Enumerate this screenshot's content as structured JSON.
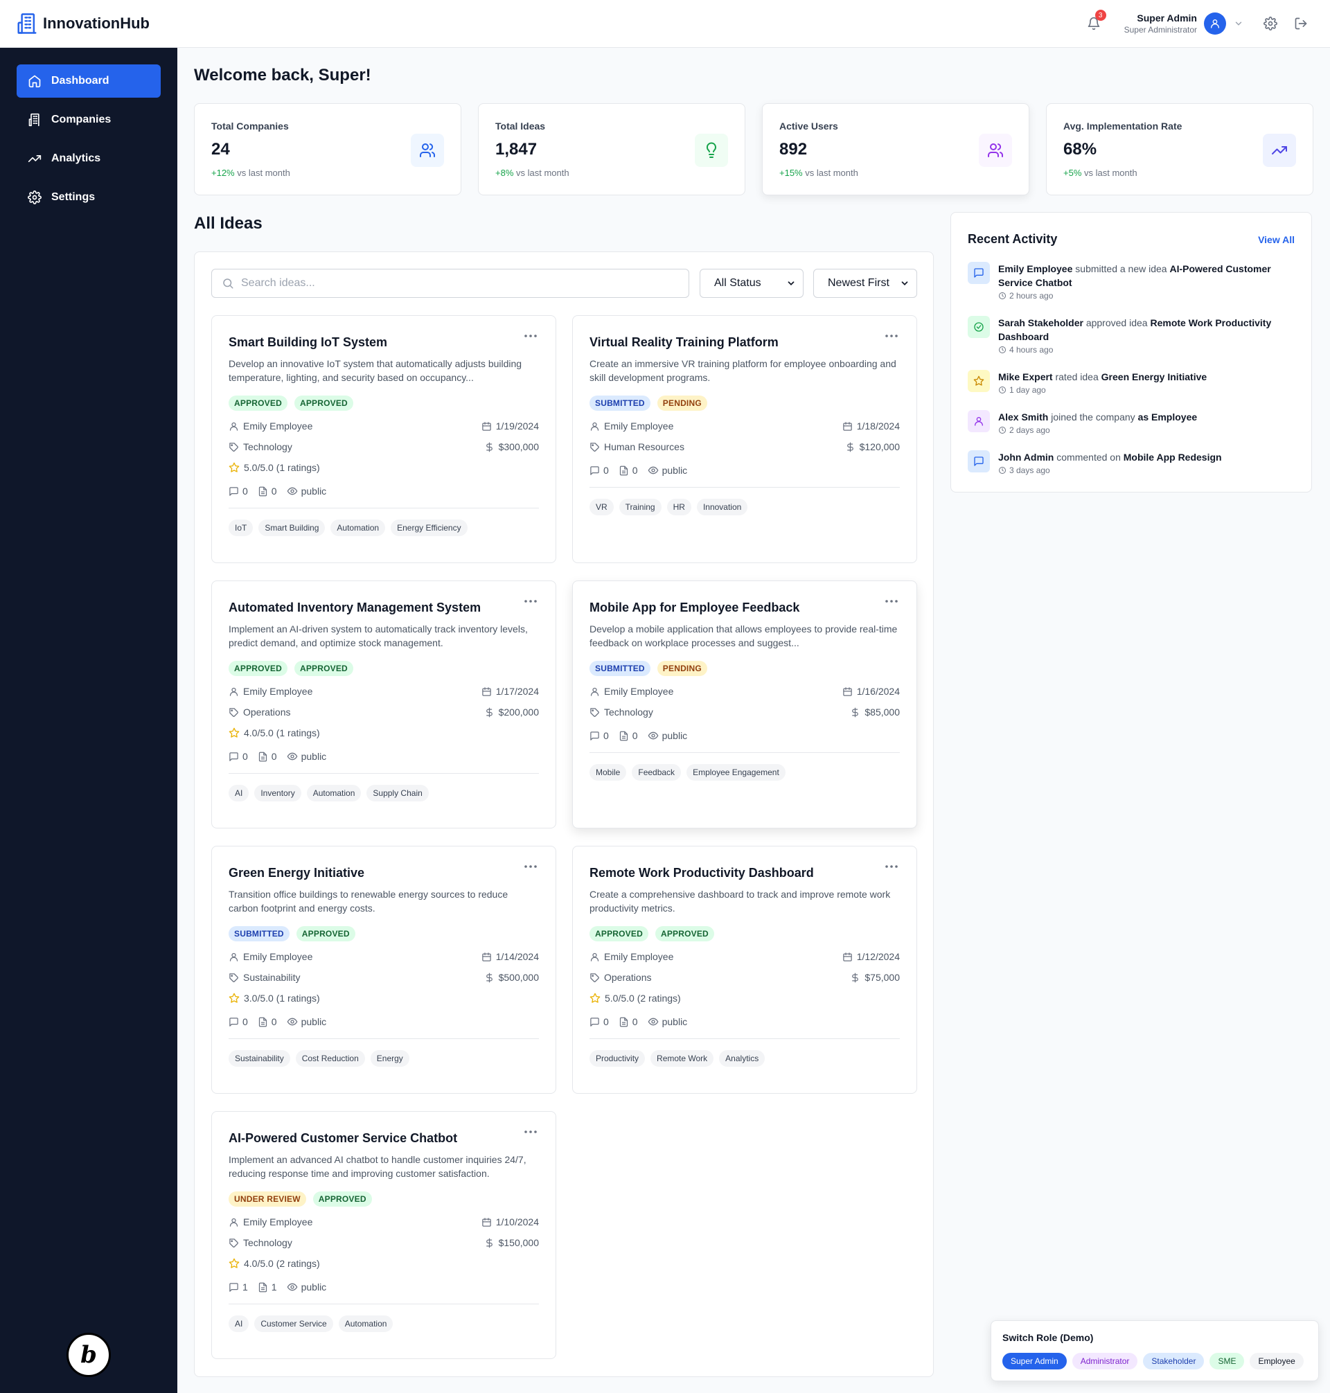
{
  "app": {
    "name": "InnovationHub",
    "notifications": "3"
  },
  "user": {
    "name": "Super Admin",
    "role": "Super Administrator"
  },
  "nav": [
    {
      "label": "Dashboard",
      "icon": "home-icon",
      "active": true
    },
    {
      "label": "Companies",
      "icon": "building-icon"
    },
    {
      "label": "Analytics",
      "icon": "trending-icon"
    },
    {
      "label": "Settings",
      "icon": "gear-icon"
    }
  ],
  "welcome": "Welcome back, Super!",
  "stats": [
    {
      "label": "Total Companies",
      "value": "24",
      "change": "+12%",
      "suffix": "vs last month",
      "icon": "users-icon"
    },
    {
      "label": "Total Ideas",
      "value": "1,847",
      "change": "+8%",
      "suffix": "vs last month",
      "icon": "lightbulb-icon"
    },
    {
      "label": "Active Users",
      "value": "892",
      "change": "+15%",
      "suffix": "vs last month",
      "icon": "users-icon"
    },
    {
      "label": "Avg. Implementation Rate",
      "value": "68%",
      "change": "+5%",
      "suffix": "vs last month",
      "icon": "trending-icon"
    }
  ],
  "ideas_title": "All Ideas",
  "search": {
    "placeholder": "Search ideas..."
  },
  "filters": {
    "status": "All Status",
    "sort": "Newest First"
  },
  "ideas": [
    {
      "title": "Smart Building IoT System",
      "desc": "Develop an innovative IoT system that automatically adjusts building temperature, lighting, and security based on occupancy...",
      "badges": [
        "APPROVED",
        "APPROVED"
      ],
      "author": "Emily Employee",
      "date": "1/19/2024",
      "category": "Technology",
      "budget": "$300,000",
      "rating": "5.0/5.0 (1 ratings)",
      "comments": "0",
      "docs": "0",
      "visibility": "public",
      "tags": [
        "IoT",
        "Smart Building",
        "Automation",
        "Energy Efficiency"
      ]
    },
    {
      "title": "Virtual Reality Training Platform",
      "desc": "Create an immersive VR training platform for employee onboarding and skill development programs.",
      "badges": [
        "SUBMITTED",
        "PENDING"
      ],
      "author": "Emily Employee",
      "date": "1/18/2024",
      "category": "Human Resources",
      "budget": "$120,000",
      "rating": "",
      "comments": "0",
      "docs": "0",
      "visibility": "public",
      "tags": [
        "VR",
        "Training",
        "HR",
        "Innovation"
      ]
    },
    {
      "title": "Automated Inventory Management System",
      "desc": "Implement an AI-driven system to automatically track inventory levels, predict demand, and optimize stock management.",
      "badges": [
        "APPROVED",
        "APPROVED"
      ],
      "author": "Emily Employee",
      "date": "1/17/2024",
      "category": "Operations",
      "budget": "$200,000",
      "rating": "4.0/5.0 (1 ratings)",
      "comments": "0",
      "docs": "0",
      "visibility": "public",
      "tags": [
        "AI",
        "Inventory",
        "Automation",
        "Supply Chain"
      ]
    },
    {
      "title": "Mobile App for Employee Feedback",
      "desc": "Develop a mobile application that allows employees to provide real-time feedback on workplace processes and suggest...",
      "badges": [
        "SUBMITTED",
        "PENDING"
      ],
      "author": "Emily Employee",
      "date": "1/16/2024",
      "category": "Technology",
      "budget": "$85,000",
      "rating": "",
      "comments": "0",
      "docs": "0",
      "visibility": "public",
      "tags": [
        "Mobile",
        "Feedback",
        "Employee Engagement"
      ]
    },
    {
      "title": "Green Energy Initiative",
      "desc": "Transition office buildings to renewable energy sources to reduce carbon footprint and energy costs.",
      "badges": [
        "SUBMITTED",
        "APPROVED"
      ],
      "author": "Emily Employee",
      "date": "1/14/2024",
      "category": "Sustainability",
      "budget": "$500,000",
      "rating": "3.0/5.0 (1 ratings)",
      "comments": "0",
      "docs": "0",
      "visibility": "public",
      "tags": [
        "Sustainability",
        "Cost Reduction",
        "Energy"
      ]
    },
    {
      "title": "Remote Work Productivity Dashboard",
      "desc": "Create a comprehensive dashboard to track and improve remote work productivity metrics.",
      "badges": [
        "APPROVED",
        "APPROVED"
      ],
      "author": "Emily Employee",
      "date": "1/12/2024",
      "category": "Operations",
      "budget": "$75,000",
      "rating": "5.0/5.0 (2 ratings)",
      "comments": "0",
      "docs": "0",
      "visibility": "public",
      "tags": [
        "Productivity",
        "Remote Work",
        "Analytics"
      ]
    },
    {
      "title": "AI-Powered Customer Service Chatbot",
      "desc": "Implement an advanced AI chatbot to handle customer inquiries 24/7, reducing response time and improving customer satisfaction.",
      "badges": [
        "UNDER REVIEW",
        "APPROVED"
      ],
      "author": "Emily Employee",
      "date": "1/10/2024",
      "category": "Technology",
      "budget": "$150,000",
      "rating": "4.0/5.0 (2 ratings)",
      "comments": "1",
      "docs": "1",
      "visibility": "public",
      "tags": [
        "AI",
        "Customer Service",
        "Automation"
      ]
    }
  ],
  "activity": {
    "title": "Recent Activity",
    "view_all": "View All",
    "items": [
      {
        "type": "message",
        "actor": "Emily Employee",
        "action": "submitted a new idea",
        "target": "AI-Powered Customer Service Chatbot",
        "time": "2 hours ago"
      },
      {
        "type": "approve",
        "actor": "Sarah Stakeholder",
        "action": "approved idea",
        "target": "Remote Work Productivity Dashboard",
        "time": "4 hours ago"
      },
      {
        "type": "star",
        "actor": "Mike Expert",
        "action": "rated idea",
        "target": "Green Energy Initiative",
        "time": "1 day ago"
      },
      {
        "type": "user",
        "actor": "Alex Smith",
        "action": "joined the company",
        "target": "as Employee",
        "time": "2 days ago"
      },
      {
        "type": "message",
        "actor": "John Admin",
        "action": "commented on",
        "target": "Mobile App Redesign",
        "time": "3 days ago"
      }
    ]
  },
  "role_switch": {
    "title": "Switch Role (Demo)",
    "roles": [
      "Super Admin",
      "Administrator",
      "Stakeholder",
      "SME",
      "Employee"
    ]
  },
  "colors": {
    "accent": "#2563eb",
    "sidebar": "#0f172a",
    "positive": "#16a34a"
  }
}
